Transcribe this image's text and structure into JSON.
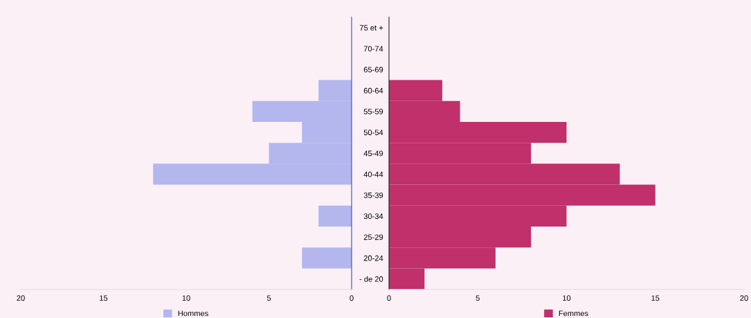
{
  "chart_data": [
    {
      "type": "bar",
      "orientation": "horizontal",
      "categories": [
        null,
        null,
        null,
        null,
        null,
        null,
        null,
        null,
        null,
        null,
        null,
        null,
        null
      ],
      "series": [
        {
          "name": "Hommes",
          "color": "#b4b6ee",
          "values": [
            0,
            0,
            0,
            2,
            6,
            3,
            5,
            12,
            0,
            2,
            0,
            3,
            0
          ]
        }
      ],
      "xlim": [
        20,
        0
      ],
      "xticks": [
        20,
        15,
        10,
        5,
        0
      ],
      "legend": "bottom",
      "grid": false
    },
    {
      "type": "bar",
      "orientation": "horizontal",
      "categories": [
        "75 et +",
        "70-74",
        "65-69",
        "60-64",
        "55-59",
        "50-54",
        "45-49",
        "40-44",
        "35-39",
        "30-34",
        "25-29",
        "20-24",
        "- de 20"
      ],
      "series": [
        {
          "name": "Femmes",
          "color": "#c0306a",
          "values": [
            0,
            0,
            0,
            3,
            4,
            10,
            8,
            13,
            15,
            10,
            8,
            6,
            2
          ]
        }
      ],
      "xlim": [
        0,
        20
      ],
      "xticks": [
        0,
        5,
        10,
        15,
        20
      ],
      "legend": "bottom",
      "grid": false
    }
  ]
}
